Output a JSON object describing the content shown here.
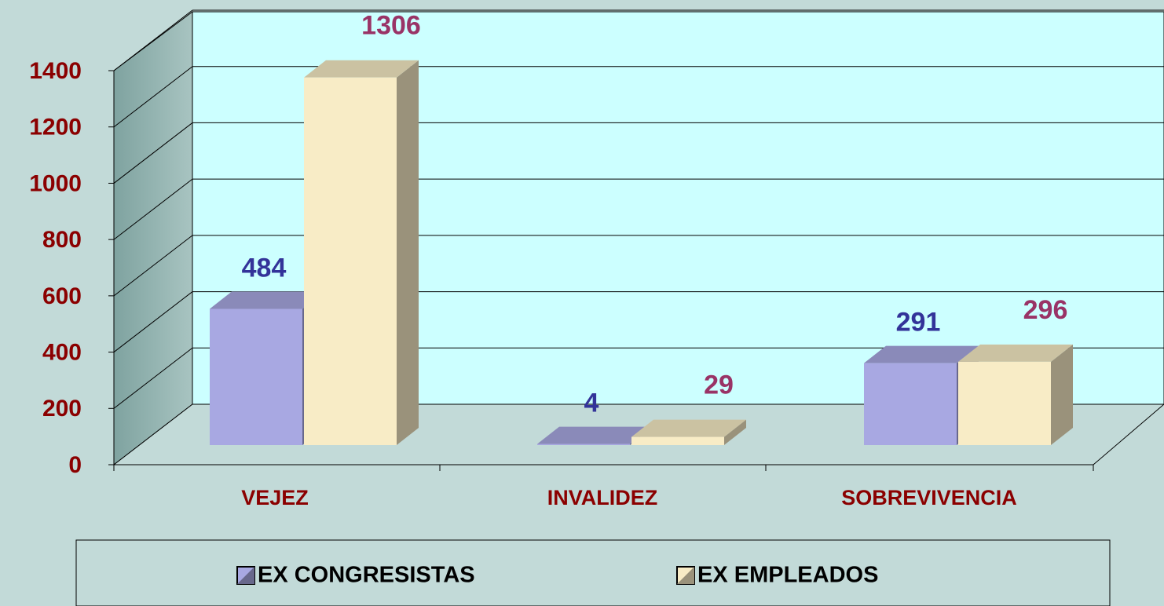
{
  "chart_data": {
    "type": "bar3d",
    "categories": [
      "VEJEZ",
      "INVALIDEZ",
      "SOBREVIVENCIA"
    ],
    "series": [
      {
        "name": "EX CONGRESISTAS",
        "color": "#a8a8e2",
        "label_color": "#333399",
        "values": [
          484,
          4,
          291
        ]
      },
      {
        "name": "EX EMPLEADOS",
        "color": "#f8ecc6",
        "label_color": "#993366",
        "values": [
          1306,
          29,
          296
        ]
      }
    ],
    "ylim": [
      0,
      1400
    ],
    "yticks": [
      0,
      200,
      400,
      600,
      800,
      1000,
      1200,
      1400
    ],
    "grid": true
  }
}
